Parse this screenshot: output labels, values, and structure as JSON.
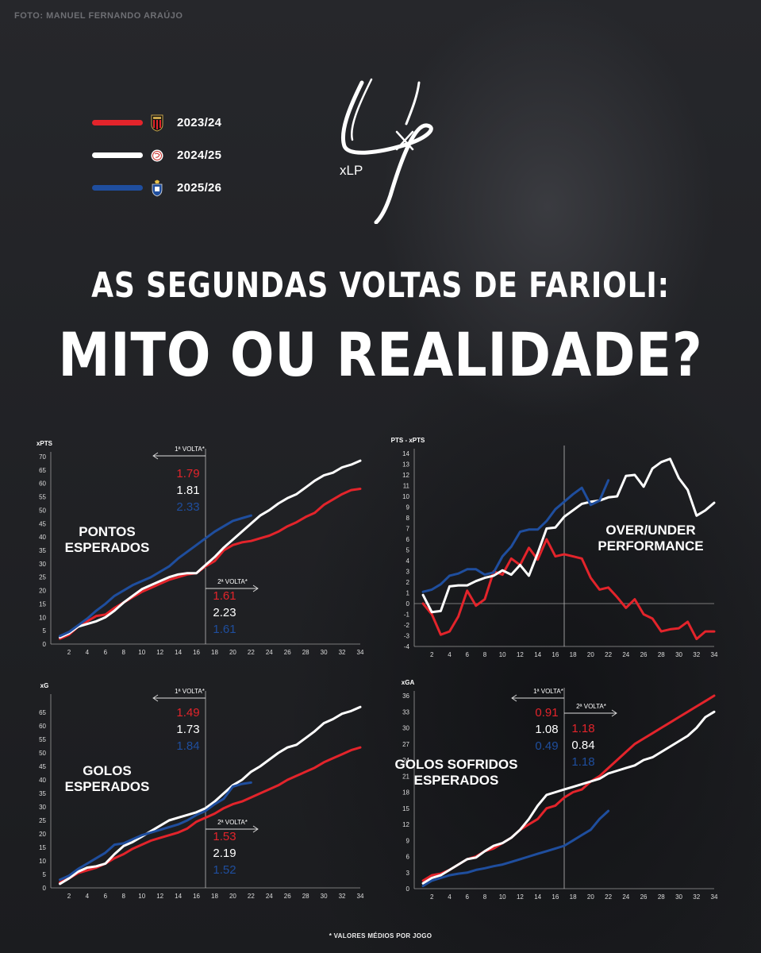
{
  "photo_credit": "FOTO:  MANUEL FERNANDO ARAÚJO",
  "legend": [
    {
      "season": "2023/24",
      "color": "#e3242b",
      "badge": "nice-badge-icon"
    },
    {
      "season": "2024/25",
      "color": "#ffffff",
      "badge": "ajax-badge-icon"
    },
    {
      "season": "2025/26",
      "color": "#1f4e9e",
      "badge": "porto-badge-icon"
    }
  ],
  "logo": {
    "text": "xLP"
  },
  "title": {
    "line1": "AS SEGUNDAS VOLTAS DE FARIOLI:",
    "line2": "MITO OU REALIDADE?"
  },
  "colors": {
    "red": "#e3242b",
    "white": "#ffffff",
    "blue": "#1f4e9e"
  },
  "footnote": "* VALORES MÉDIOS POR JOGO",
  "chart_data": [
    {
      "type": "line",
      "ylabel": "xPTS",
      "overlay_title": [
        "PONTOS",
        "ESPERADOS"
      ],
      "ylim": [
        0,
        70
      ],
      "yticks": [
        0,
        5,
        10,
        15,
        20,
        25,
        30,
        35,
        40,
        45,
        50,
        55,
        60,
        65,
        70
      ],
      "xlim": [
        0,
        34
      ],
      "xticks": [
        2,
        4,
        6,
        8,
        10,
        12,
        14,
        16,
        18,
        20,
        22,
        24,
        26,
        28,
        30,
        32,
        34
      ],
      "divider_x": 17,
      "first_half": {
        "label": "1ª VOLTA*",
        "values": [
          "1.79",
          "1.81",
          "2.33"
        ]
      },
      "second_half": {
        "label": "2ª VOLTA*",
        "values": [
          "1.61",
          "2.23",
          "1.61"
        ]
      },
      "series": [
        {
          "color": "#e3242b",
          "x": [
            1,
            2,
            3,
            4,
            5,
            6,
            7,
            8,
            9,
            10,
            11,
            12,
            13,
            14,
            15,
            16,
            17,
            18,
            19,
            20,
            21,
            22,
            23,
            24,
            25,
            26,
            27,
            28,
            29,
            30,
            31,
            32,
            33,
            34
          ],
          "y": [
            2,
            3.5,
            6.5,
            8.5,
            10.5,
            11,
            13.5,
            15.5,
            17.5,
            19.5,
            21,
            22.5,
            24,
            25,
            26,
            26.5,
            29,
            31,
            35,
            37,
            38,
            38.5,
            39.5,
            40.5,
            42,
            44,
            45.5,
            47.5,
            49,
            52,
            54,
            56,
            57.5,
            58
          ]
        },
        {
          "color": "#ffffff",
          "x": [
            1,
            2,
            3,
            4,
            5,
            6,
            7,
            8,
            9,
            10,
            11,
            12,
            13,
            14,
            15,
            16,
            17,
            18,
            19,
            20,
            21,
            22,
            23,
            24,
            25,
            26,
            27,
            28,
            29,
            30,
            31,
            32,
            33,
            34
          ],
          "y": [
            2.5,
            4,
            6.5,
            7.5,
            8.5,
            10,
            12.5,
            15.5,
            18,
            20.5,
            22,
            23.5,
            25,
            26,
            26.5,
            26.5,
            29.5,
            32.5,
            36,
            39,
            42,
            45,
            48,
            50,
            52.5,
            54.5,
            56,
            58.5,
            61,
            63,
            64,
            66,
            67,
            68.5
          ]
        },
        {
          "color": "#1f4e9e",
          "x": [
            1,
            2,
            3,
            4,
            5,
            6,
            7,
            8,
            9,
            10,
            11,
            12,
            13,
            14,
            15,
            16,
            17,
            18,
            19,
            20,
            21,
            22
          ],
          "y": [
            3,
            4.5,
            7,
            9.5,
            12.5,
            15,
            18,
            20,
            22,
            23.5,
            25,
            27,
            29,
            32,
            34.5,
            37,
            39.5,
            42,
            44,
            46,
            47,
            48
          ]
        }
      ]
    },
    {
      "type": "line",
      "ylabel": "PTS - xPTS",
      "overlay_title": [
        "OVER/UNDER",
        "PERFORMANCE"
      ],
      "ylim": [
        -4,
        14
      ],
      "yticks": [
        -4,
        -3,
        -2,
        -1,
        0,
        1,
        2,
        3,
        4,
        5,
        6,
        7,
        8,
        9,
        10,
        11,
        12,
        13,
        14
      ],
      "xlim": [
        0,
        34
      ],
      "xticks": [
        2,
        4,
        6,
        8,
        10,
        12,
        14,
        16,
        18,
        20,
        22,
        24,
        26,
        28,
        30,
        32,
        34
      ],
      "divider_x": 17,
      "series": [
        {
          "color": "#e3242b",
          "x": [
            1,
            2,
            3,
            4,
            5,
            6,
            7,
            8,
            9,
            10,
            11,
            12,
            13,
            14,
            15,
            16,
            17,
            18,
            19,
            20,
            21,
            22,
            23,
            24,
            25,
            26,
            27,
            28,
            29,
            30,
            31,
            32,
            33,
            34
          ],
          "y": [
            0,
            -1,
            -2.9,
            -2.6,
            -1.2,
            1.2,
            -0.2,
            0.4,
            3,
            2.7,
            4.2,
            3.6,
            5.2,
            4.1,
            6,
            4.4,
            4.6,
            4.4,
            4.2,
            2.4,
            1.3,
            1.5,
            0.6,
            -0.4,
            0.4,
            -1,
            -1.4,
            -2.6,
            -2.4,
            -2.3,
            -1.7,
            -3.3,
            -2.6,
            -2.6
          ]
        },
        {
          "color": "#ffffff",
          "x": [
            1,
            2,
            3,
            4,
            5,
            6,
            7,
            8,
            9,
            10,
            11,
            12,
            13,
            14,
            15,
            16,
            17,
            18,
            19,
            20,
            21,
            22,
            23,
            24,
            25,
            26,
            27,
            28,
            29,
            30,
            31,
            32,
            33,
            34
          ],
          "y": [
            0.8,
            -0.8,
            -0.7,
            1.6,
            1.7,
            1.7,
            2.1,
            2.4,
            2.6,
            3.1,
            2.7,
            3.6,
            2.6,
            4.7,
            7,
            7.1,
            8.1,
            8.7,
            9.3,
            9.5,
            9.6,
            9.9,
            10,
            11.9,
            12,
            10.9,
            12.6,
            13.2,
            13.5,
            11.7,
            10.6,
            8.2,
            8.7,
            9.4
          ]
        },
        {
          "color": "#1f4e9e",
          "x": [
            1,
            2,
            3,
            4,
            5,
            6,
            7,
            8,
            9,
            10,
            11,
            12,
            13,
            14,
            15,
            16,
            17,
            18,
            19,
            20,
            21,
            22
          ],
          "y": [
            1.1,
            1.3,
            1.8,
            2.6,
            2.8,
            3.2,
            3.2,
            2.7,
            2.9,
            4.4,
            5.3,
            6.7,
            6.9,
            6.9,
            7.7,
            8.8,
            9.5,
            10.2,
            10.8,
            9.2,
            9.6,
            11.5
          ]
        }
      ]
    },
    {
      "type": "line",
      "ylabel": "xG",
      "overlay_title": [
        "GOLOS",
        "ESPERADOS"
      ],
      "ylim": [
        0,
        70
      ],
      "yticks": [
        0,
        5,
        10,
        15,
        20,
        25,
        30,
        35,
        40,
        45,
        50,
        55,
        60,
        65
      ],
      "xlim": [
        0,
        34
      ],
      "xticks": [
        2,
        4,
        6,
        8,
        10,
        12,
        14,
        16,
        18,
        20,
        22,
        24,
        26,
        28,
        30,
        32,
        34
      ],
      "divider_x": 17,
      "first_half": {
        "label": "1ª VOLTA*",
        "values": [
          "1.49",
          "1.73",
          "1.84"
        ]
      },
      "second_half": {
        "label": "2ª VOLTA*",
        "values": [
          "1.53",
          "2.19",
          "1.52"
        ]
      },
      "series": [
        {
          "color": "#e3242b",
          "x": [
            1,
            2,
            3,
            4,
            5,
            6,
            7,
            8,
            9,
            10,
            11,
            12,
            13,
            14,
            15,
            16,
            17,
            18,
            19,
            20,
            21,
            22,
            23,
            24,
            25,
            26,
            27,
            28,
            29,
            30,
            31,
            32,
            33,
            34
          ],
          "y": [
            2,
            3.5,
            5.5,
            6.5,
            7.5,
            9,
            11,
            12.5,
            14.5,
            16,
            17.5,
            18.5,
            19.5,
            20.5,
            22,
            24.5,
            26,
            27.5,
            29.5,
            31,
            32,
            33.5,
            35,
            36.5,
            38,
            40,
            41.5,
            43,
            44.5,
            46.5,
            48,
            49.5,
            51,
            52
          ]
        },
        {
          "color": "#ffffff",
          "x": [
            1,
            2,
            3,
            4,
            5,
            6,
            7,
            8,
            9,
            10,
            11,
            12,
            13,
            14,
            15,
            16,
            17,
            18,
            19,
            20,
            21,
            22,
            23,
            24,
            25,
            26,
            27,
            28,
            29,
            30,
            31,
            32,
            33,
            34
          ],
          "y": [
            1.5,
            3.5,
            6,
            7.5,
            8,
            9,
            12.5,
            15.5,
            17,
            19,
            21,
            23,
            25,
            26,
            27,
            28,
            29.5,
            32,
            35,
            38,
            40,
            43,
            45,
            47.5,
            50,
            52,
            53,
            55.5,
            58,
            61,
            62.5,
            64.5,
            65.5,
            67
          ]
        },
        {
          "color": "#1f4e9e",
          "x": [
            1,
            2,
            3,
            4,
            5,
            6,
            7,
            8,
            9,
            10,
            11,
            12,
            13,
            14,
            15,
            16,
            17,
            18,
            19,
            20,
            21,
            22
          ],
          "y": [
            3,
            4.5,
            7,
            9,
            11,
            13,
            16,
            16.5,
            18,
            19.5,
            20.5,
            21.5,
            22.5,
            23.5,
            25,
            27,
            28.5,
            31,
            33,
            37.5,
            38.5,
            39
          ]
        }
      ]
    },
    {
      "type": "line",
      "ylabel": "xGA",
      "overlay_title": [
        "GOLOS SOFRIDOS",
        "ESPERADOS"
      ],
      "ylim": [
        0,
        36
      ],
      "yticks": [
        0,
        3,
        6,
        9,
        12,
        15,
        18,
        21,
        24,
        27,
        30,
        33,
        36
      ],
      "xlim": [
        0,
        34
      ],
      "xticks": [
        2,
        4,
        6,
        8,
        10,
        12,
        14,
        16,
        18,
        20,
        22,
        24,
        26,
        28,
        30,
        32,
        34
      ],
      "divider_x": 17,
      "first_half": {
        "label": "1ª VOLTA*",
        "values": [
          "0.91",
          "1.08",
          "0.49"
        ]
      },
      "second_half": {
        "label": "2ª VOLTA*",
        "values": [
          "1.18",
          "0.84",
          "1.18"
        ]
      },
      "series": [
        {
          "color": "#e3242b",
          "x": [
            1,
            2,
            3,
            4,
            5,
            6,
            7,
            8,
            9,
            10,
            11,
            12,
            13,
            14,
            15,
            16,
            17,
            18,
            19,
            20,
            21,
            22,
            23,
            24,
            25,
            26,
            27,
            28,
            29,
            30,
            31,
            32,
            33,
            34
          ],
          "y": [
            1.5,
            2.5,
            2.8,
            3.5,
            4.5,
            5.5,
            6,
            7,
            7.5,
            8.5,
            9.5,
            11,
            12,
            13,
            15,
            15.5,
            17,
            18,
            18.5,
            20,
            21,
            22.5,
            24,
            25.5,
            27,
            28,
            29,
            30,
            31,
            32,
            33,
            34,
            35,
            36
          ]
        },
        {
          "color": "#ffffff",
          "x": [
            1,
            2,
            3,
            4,
            5,
            6,
            7,
            8,
            9,
            10,
            11,
            12,
            13,
            14,
            15,
            16,
            17,
            18,
            19,
            20,
            21,
            22,
            23,
            24,
            25,
            26,
            27,
            28,
            29,
            30,
            31,
            32,
            33,
            34
          ],
          "y": [
            1,
            2,
            2.5,
            3.5,
            4.5,
            5.5,
            5.8,
            7,
            8,
            8.5,
            9.5,
            11,
            13,
            15.5,
            17.5,
            18,
            18.5,
            19,
            19.5,
            20,
            20.5,
            21.5,
            22,
            22.5,
            23,
            24,
            24.5,
            25.5,
            26.5,
            27.5,
            28.5,
            30,
            32,
            33
          ]
        },
        {
          "color": "#1f4e9e",
          "x": [
            1,
            2,
            3,
            4,
            5,
            6,
            7,
            8,
            9,
            10,
            11,
            12,
            13,
            14,
            15,
            16,
            17,
            18,
            19,
            20,
            21,
            22
          ],
          "y": [
            0.5,
            1.5,
            2,
            2.5,
            2.8,
            3,
            3.5,
            3.8,
            4.2,
            4.5,
            5,
            5.5,
            6,
            6.5,
            7,
            7.5,
            8,
            9,
            10,
            11,
            13,
            14.5
          ]
        }
      ]
    }
  ]
}
